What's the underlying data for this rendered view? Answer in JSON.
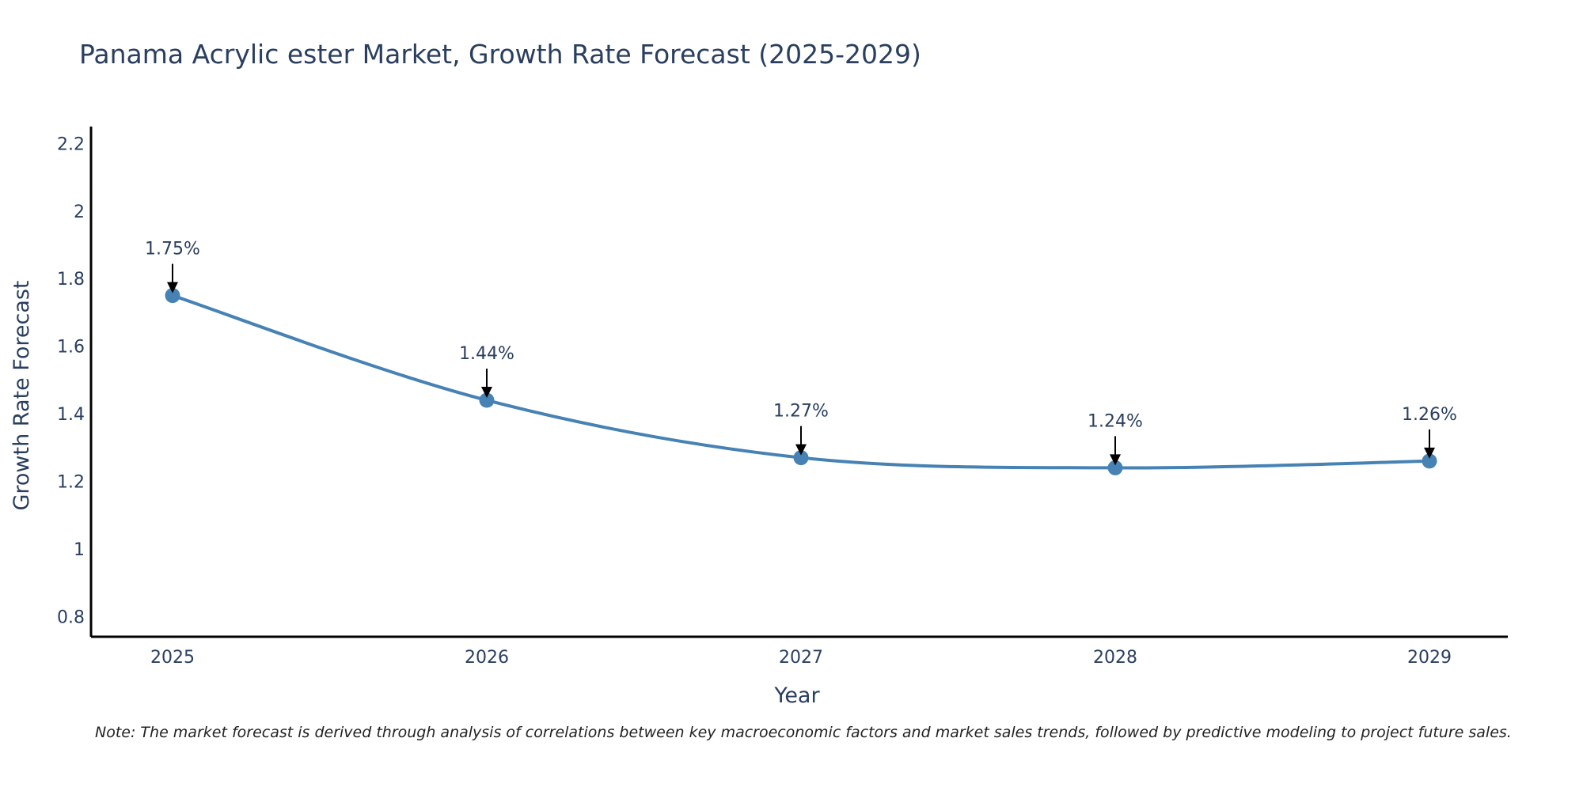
{
  "chart_data": {
    "type": "line",
    "title": "Panama Acrylic ester Market, Growth Rate Forecast (2025-2029)",
    "xlabel": "Year",
    "ylabel": "Growth Rate Forecast",
    "categories": [
      "2025",
      "2026",
      "2027",
      "2028",
      "2029"
    ],
    "values": [
      1.75,
      1.44,
      1.27,
      1.24,
      1.26
    ],
    "data_labels": [
      "1.75%",
      "1.44%",
      "1.27%",
      "1.24%",
      "1.26%"
    ],
    "ylim": [
      0.74,
      2.25
    ],
    "yticks": [
      0.8,
      1,
      1.2,
      1.4,
      1.6,
      1.8,
      2,
      2.2
    ],
    "ytick_labels": [
      "0.8",
      "1",
      "1.2",
      "1.4",
      "1.6",
      "1.8",
      "2",
      "2.2"
    ],
    "line_color": "#4682b4",
    "marker_color": "#4682b4",
    "grid": false,
    "line_shape": "spline"
  },
  "note": "Note: The market forecast is derived through analysis of correlations between key macroeconomic factors and market sales trends, followed by predictive modeling to project future sales."
}
